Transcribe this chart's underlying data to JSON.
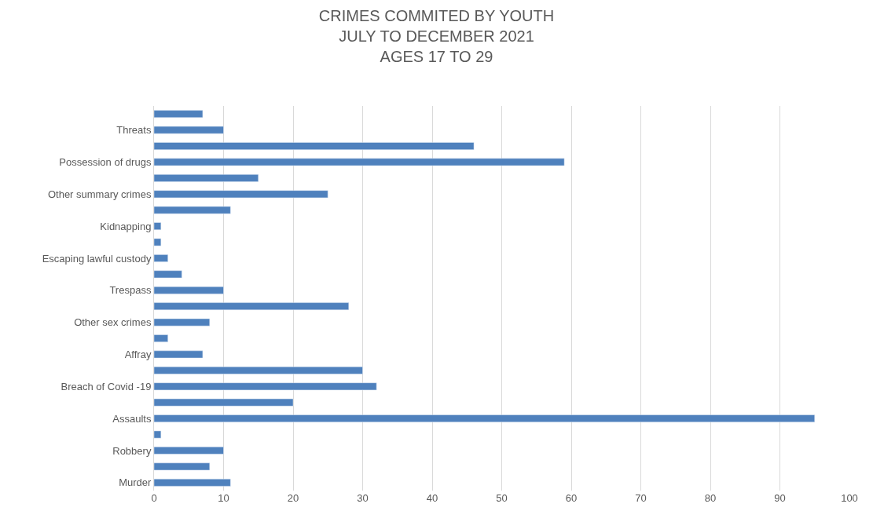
{
  "chart_data": {
    "type": "bar",
    "orientation": "horizontal",
    "title": "CRIMES COMMITED BY YOUTH\nJULY TO DECEMBER 2021\nAGES 17 TO 29",
    "categories": [
      null,
      "Threats",
      null,
      "Possession of drugs",
      null,
      "Other summary crimes",
      null,
      "Kidnapping",
      null,
      "Escaping lawful custody",
      null,
      "Trespass",
      null,
      "Other sex crimes",
      null,
      "Affray",
      null,
      "Breach of Covid -19",
      null,
      "Assaults",
      null,
      "Robbery",
      null,
      "Murder"
    ],
    "values": [
      7,
      10,
      46,
      59,
      15,
      25,
      11,
      1,
      1,
      2,
      4,
      10,
      28,
      8,
      2,
      7,
      30,
      32,
      20,
      95,
      1,
      10,
      8,
      11
    ],
    "color": "#4f81bd",
    "xlim": [
      0,
      100
    ],
    "xticks": [
      0,
      10,
      20,
      30,
      40,
      50,
      60,
      70,
      80,
      90,
      100
    ],
    "grid": "x"
  }
}
